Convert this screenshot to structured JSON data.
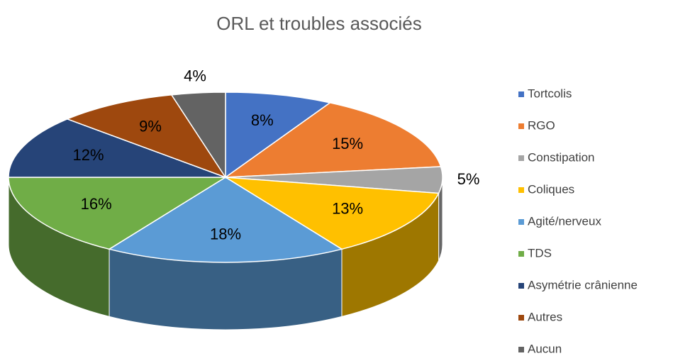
{
  "chart_data": {
    "type": "pie3d",
    "title": "ORL et troubles associés",
    "categories": [
      "Tortcolis",
      "RGO",
      "Constipation",
      "Coliques",
      "Agité/nerveux",
      "TDS",
      "Asymétrie crânienne",
      "Autres",
      "Aucun"
    ],
    "values": [
      8,
      15,
      5,
      13,
      18,
      16,
      12,
      9,
      4
    ],
    "value_labels": [
      "8%",
      "15%",
      "5%",
      "13%",
      "18%",
      "16%",
      "12%",
      "9%",
      "4%"
    ],
    "colors": [
      "#4472c4",
      "#ed7d31",
      "#a5a5a5",
      "#ffc000",
      "#5b9bd5",
      "#70ad47",
      "#264478",
      "#9e480e",
      "#636363"
    ],
    "legend": "right"
  }
}
